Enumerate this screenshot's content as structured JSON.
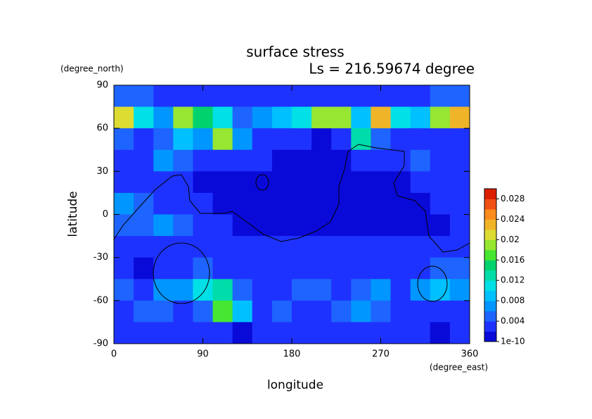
{
  "chart_data": {
    "type": "contour",
    "title": "surface stress",
    "subtitle": "Ls = 216.59674 degree",
    "x_label": "longitude",
    "y_label": "latitude",
    "x_units": "(degree_east)",
    "y_units": "(degree_north)",
    "xlim": [
      0,
      360
    ],
    "xticks": [
      0,
      90,
      180,
      270,
      360
    ],
    "ylim": [
      -90,
      90
    ],
    "yticks": [
      -90,
      -60,
      -30,
      0,
      30,
      60,
      90
    ],
    "x": [
      10,
      30,
      50,
      70,
      90,
      110,
      130,
      150,
      170,
      190,
      210,
      230,
      250,
      270,
      290,
      310,
      330,
      350
    ],
    "y": [
      82.5,
      67.5,
      52.5,
      37.5,
      22.5,
      7.5,
      -7.5,
      -22.5,
      -37.5,
      -52.5,
      -67.5,
      -82.5
    ],
    "z": [
      [
        0.006,
        0.005,
        0.004,
        0.004,
        0.004,
        0.004,
        0.004,
        0.004,
        0.004,
        0.004,
        0.004,
        0.004,
        0.004,
        0.004,
        0.004,
        0.004,
        0.005,
        0.006
      ],
      [
        0.022,
        0.012,
        0.008,
        0.02,
        0.016,
        0.012,
        0.006,
        0.008,
        0.01,
        0.012,
        0.02,
        0.02,
        0.01,
        0.024,
        0.012,
        0.01,
        0.02,
        0.024
      ],
      [
        0.006,
        0.004,
        0.006,
        0.01,
        0.008,
        0.02,
        0.008,
        0.004,
        0.004,
        0.004,
        0.002,
        0.004,
        0.014,
        0.006,
        0.004,
        0.004,
        0.004,
        0.004
      ],
      [
        0.004,
        0.004,
        0.008,
        0.006,
        0.004,
        0.004,
        0.004,
        0.004,
        0.002,
        0.002,
        0.002,
        0.002,
        0.004,
        0.004,
        0.004,
        0.006,
        0.004,
        0.004
      ],
      [
        0.004,
        0.004,
        0.004,
        0.004,
        0.002,
        0.002,
        0.002,
        0.002,
        0.002,
        0.002,
        0.002,
        0.002,
        0.002,
        0.002,
        0.002,
        0.004,
        0.004,
        0.004
      ],
      [
        0.008,
        0.006,
        0.004,
        0.004,
        0.004,
        0.002,
        0.002,
        0.002,
        0.002,
        0.002,
        0.002,
        0.002,
        0.002,
        0.002,
        0.002,
        0.002,
        0.004,
        0.004
      ],
      [
        0.006,
        0.006,
        0.008,
        0.006,
        0.004,
        0.004,
        0.002,
        0.002,
        0.002,
        0.002,
        0.002,
        0.002,
        0.002,
        0.002,
        0.002,
        0.002,
        0.002,
        0.004
      ],
      [
        0.004,
        0.004,
        0.004,
        0.004,
        0.004,
        0.004,
        0.004,
        0.004,
        0.004,
        0.004,
        0.004,
        0.004,
        0.004,
        0.004,
        0.004,
        0.004,
        0.004,
        0.004
      ],
      [
        0.004,
        0.002,
        0.004,
        0.004,
        0.006,
        0.004,
        0.004,
        0.004,
        0.004,
        0.004,
        0.004,
        0.004,
        0.004,
        0.004,
        0.004,
        0.004,
        0.006,
        0.006
      ],
      [
        0.006,
        0.004,
        0.008,
        0.008,
        0.012,
        0.014,
        0.006,
        0.004,
        0.004,
        0.006,
        0.006,
        0.004,
        0.006,
        0.008,
        0.004,
        0.008,
        0.01,
        0.008
      ],
      [
        0.004,
        0.006,
        0.006,
        0.004,
        0.006,
        0.018,
        0.01,
        0.004,
        0.006,
        0.004,
        0.004,
        0.006,
        0.008,
        0.006,
        0.004,
        0.004,
        0.004,
        0.004
      ],
      [
        0.004,
        0.004,
        0.004,
        0.004,
        0.004,
        0.004,
        0.002,
        0.004,
        0.004,
        0.004,
        0.004,
        0.004,
        0.004,
        0.004,
        0.004,
        0.004,
        0.002,
        0.004
      ]
    ],
    "colorbar": {
      "lim": [
        1e-10,
        0.03
      ],
      "ticks": [
        1e-10,
        0.004,
        0.008,
        0.012,
        0.016,
        0.02,
        0.024,
        0.028
      ],
      "colors": [
        "#0a0ad8",
        "#1e32ff",
        "#1e64ff",
        "#0096ff",
        "#00c0ff",
        "#00e0e6",
        "#00dcaa",
        "#00d26e",
        "#46e632",
        "#96e632",
        "#dcdc32",
        "#f0b428",
        "#fa8c1e",
        "#f05014",
        "#dc1e00"
      ]
    }
  }
}
